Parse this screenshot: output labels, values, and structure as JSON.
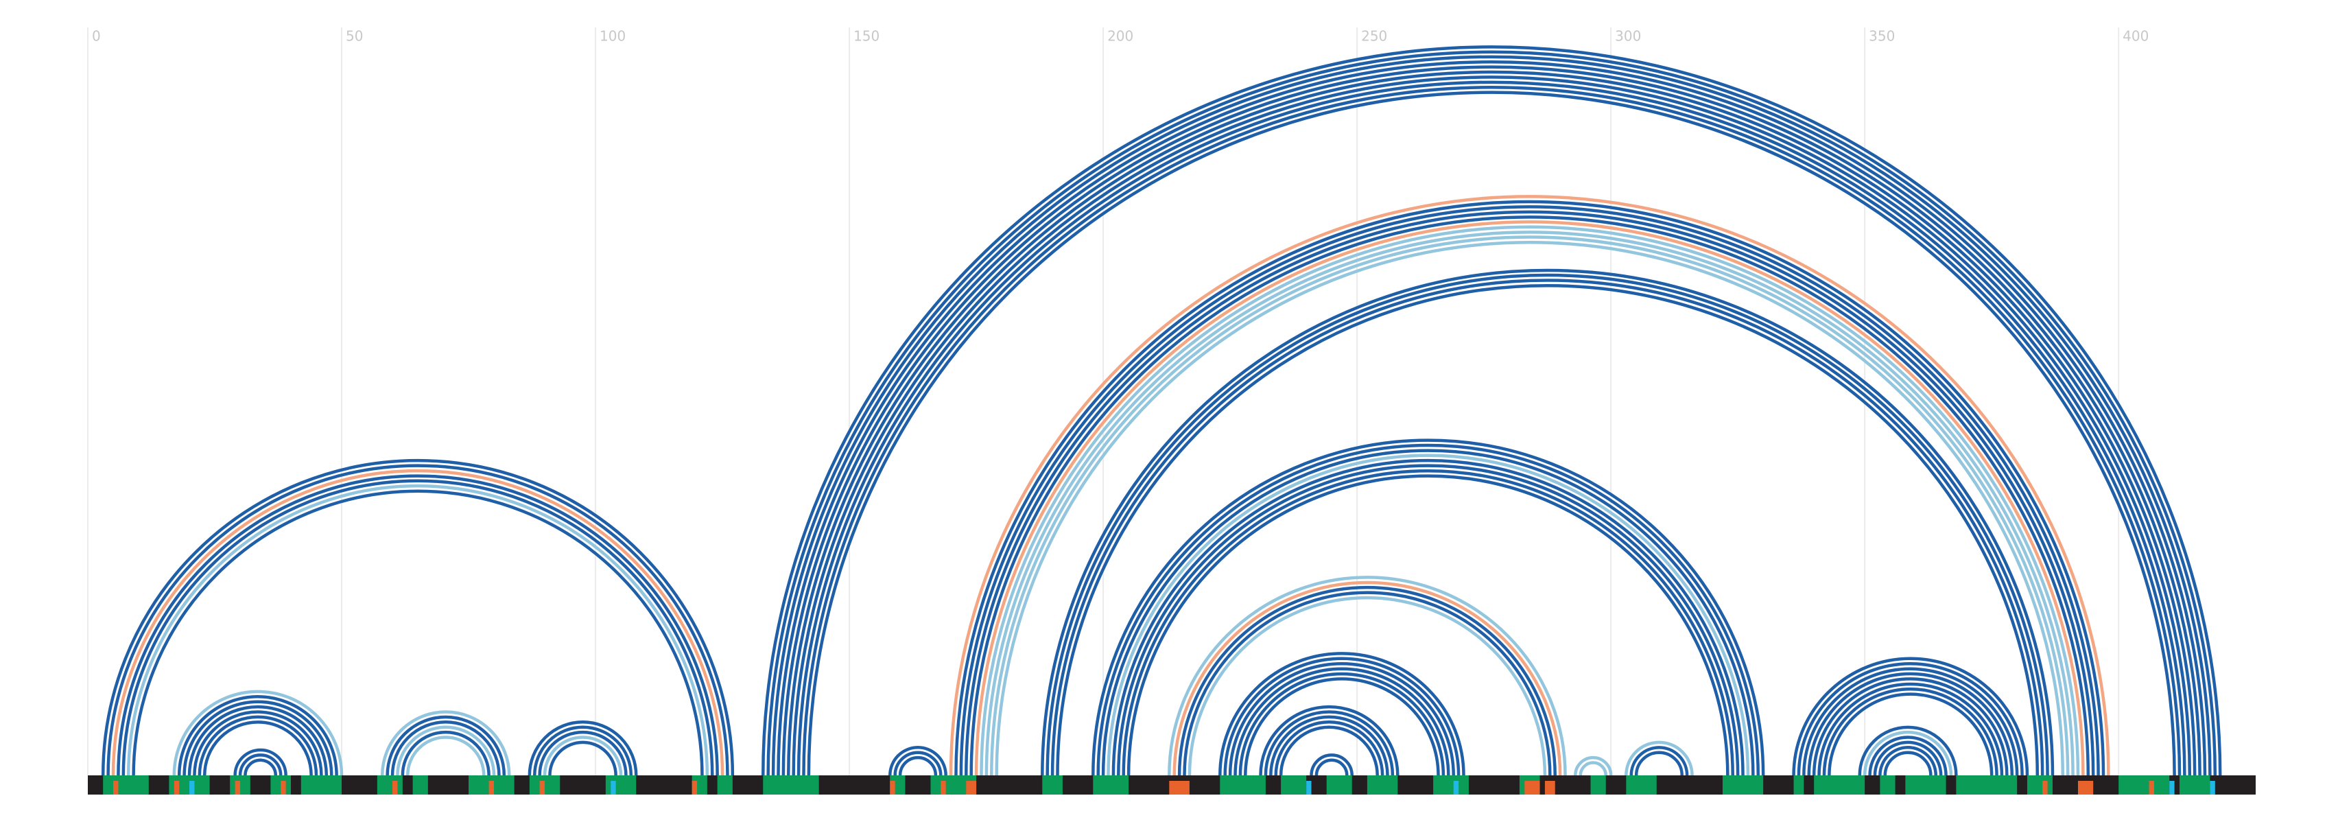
{
  "chart_data": {
    "type": "arc",
    "xlim": [
      0,
      427
    ],
    "xticks": [
      0,
      50,
      100,
      150,
      200,
      250,
      300,
      350,
      400
    ],
    "grid": true,
    "palette": {
      "b": "#1f5fa8",
      "l": "#92c5de",
      "o": "#f4a582",
      "g": "#0b9d58",
      "c": "#22b8e6",
      "r": "#e8622c",
      "k": "#231f20"
    },
    "helices": [
      {
        "i": 133,
        "j": 420,
        "colors": [
          "b",
          "b",
          "b",
          "b",
          "b",
          "b",
          "b",
          "b",
          "b",
          "b"
        ]
      },
      {
        "i": 170,
        "j": 398,
        "colors": [
          "o",
          "b",
          "b",
          "b",
          "b",
          "o",
          "l",
          "l",
          "l",
          "l"
        ]
      },
      {
        "i": 188,
        "j": 387,
        "colors": [
          "b",
          "b",
          "b",
          "b"
        ]
      },
      {
        "i": 198,
        "j": 330,
        "colors": [
          "b",
          "b",
          "b",
          "l",
          "b",
          "b",
          "b",
          "b"
        ]
      },
      {
        "i": 213,
        "j": 291,
        "colors": [
          "l",
          "o",
          "b",
          "b",
          "l"
        ]
      },
      {
        "i": 223,
        "j": 271,
        "colors": [
          "b",
          "b",
          "b",
          "b",
          "b",
          "b"
        ]
      },
      {
        "i": 231,
        "j": 258,
        "colors": [
          "b",
          "b",
          "b",
          "b",
          "b"
        ]
      },
      {
        "i": 241,
        "j": 249,
        "colors": [
          "b",
          "b"
        ]
      },
      {
        "i": 3,
        "j": 127,
        "colors": [
          "b",
          "b",
          "o",
          "b",
          "b",
          "l",
          "b"
        ]
      },
      {
        "i": 17,
        "j": 50,
        "colors": [
          "l",
          "b",
          "b",
          "b",
          "b",
          "b",
          "b"
        ]
      },
      {
        "i": 29,
        "j": 39,
        "colors": [
          "b",
          "b",
          "b"
        ]
      },
      {
        "i": 58,
        "j": 83,
        "colors": [
          "l",
          "b",
          "b",
          "l",
          "b",
          "l"
        ]
      },
      {
        "i": 87,
        "j": 108,
        "colors": [
          "b",
          "b",
          "b",
          "l",
          "b"
        ]
      },
      {
        "i": 158,
        "j": 169,
        "colors": [
          "b",
          "b",
          "b"
        ]
      },
      {
        "i": 293,
        "j": 300,
        "colors": [
          "l",
          "l"
        ]
      },
      {
        "i": 303,
        "j": 316,
        "colors": [
          "l",
          "b",
          "b"
        ]
      },
      {
        "i": 336,
        "j": 382,
        "colors": [
          "b",
          "b",
          "b",
          "b",
          "b",
          "b",
          "b",
          "b"
        ]
      },
      {
        "i": 349,
        "j": 368,
        "colors": [
          "b",
          "l",
          "b",
          "b",
          "b",
          "b"
        ]
      }
    ],
    "segments": [
      [
        3,
        12,
        "g"
      ],
      [
        16,
        24,
        "g"
      ],
      [
        28,
        32,
        "g"
      ],
      [
        36,
        40,
        "g"
      ],
      [
        42,
        50,
        "g"
      ],
      [
        57,
        62,
        "g"
      ],
      [
        64,
        67,
        "g"
      ],
      [
        75,
        84,
        "g"
      ],
      [
        87,
        93,
        "g"
      ],
      [
        102,
        108,
        "g"
      ],
      [
        119,
        122,
        "g"
      ],
      [
        124,
        127,
        "g"
      ],
      [
        133,
        144,
        "g"
      ],
      [
        158,
        161,
        "g"
      ],
      [
        166,
        175,
        "g"
      ],
      [
        188,
        192,
        "g"
      ],
      [
        198,
        205,
        "g"
      ],
      [
        223,
        232,
        "g"
      ],
      [
        235,
        240,
        "g"
      ],
      [
        244,
        249,
        "g"
      ],
      [
        252,
        258,
        "g"
      ],
      [
        265,
        272,
        "g"
      ],
      [
        282,
        286,
        "g"
      ],
      [
        296,
        299,
        "g"
      ],
      [
        303,
        309,
        "g"
      ],
      [
        322,
        330,
        "g"
      ],
      [
        336,
        338,
        "g"
      ],
      [
        340,
        350,
        "g"
      ],
      [
        353,
        356,
        "g"
      ],
      [
        358,
        366,
        "g"
      ],
      [
        368,
        380,
        "g"
      ],
      [
        382,
        387,
        "g"
      ],
      [
        400,
        410,
        "g"
      ],
      [
        412,
        418,
        "g"
      ],
      [
        5,
        6,
        "r"
      ],
      [
        17,
        18,
        "r"
      ],
      [
        29,
        30,
        "r"
      ],
      [
        38,
        39,
        "r"
      ],
      [
        60,
        61,
        "r"
      ],
      [
        79,
        80,
        "r"
      ],
      [
        89,
        90,
        "r"
      ],
      [
        119,
        120,
        "r"
      ],
      [
        158,
        159,
        "r"
      ],
      [
        168,
        169,
        "r"
      ],
      [
        173,
        175,
        "r"
      ],
      [
        213,
        217,
        "r"
      ],
      [
        283,
        286,
        "r"
      ],
      [
        287,
        289,
        "r"
      ],
      [
        385,
        386,
        "r"
      ],
      [
        392,
        395,
        "r"
      ],
      [
        406,
        407,
        "r"
      ],
      [
        20,
        21,
        "c"
      ],
      [
        103,
        104,
        "c"
      ],
      [
        240,
        241,
        "c"
      ],
      [
        269,
        270,
        "c"
      ],
      [
        410,
        411,
        "c"
      ],
      [
        418,
        419,
        "c"
      ]
    ]
  }
}
